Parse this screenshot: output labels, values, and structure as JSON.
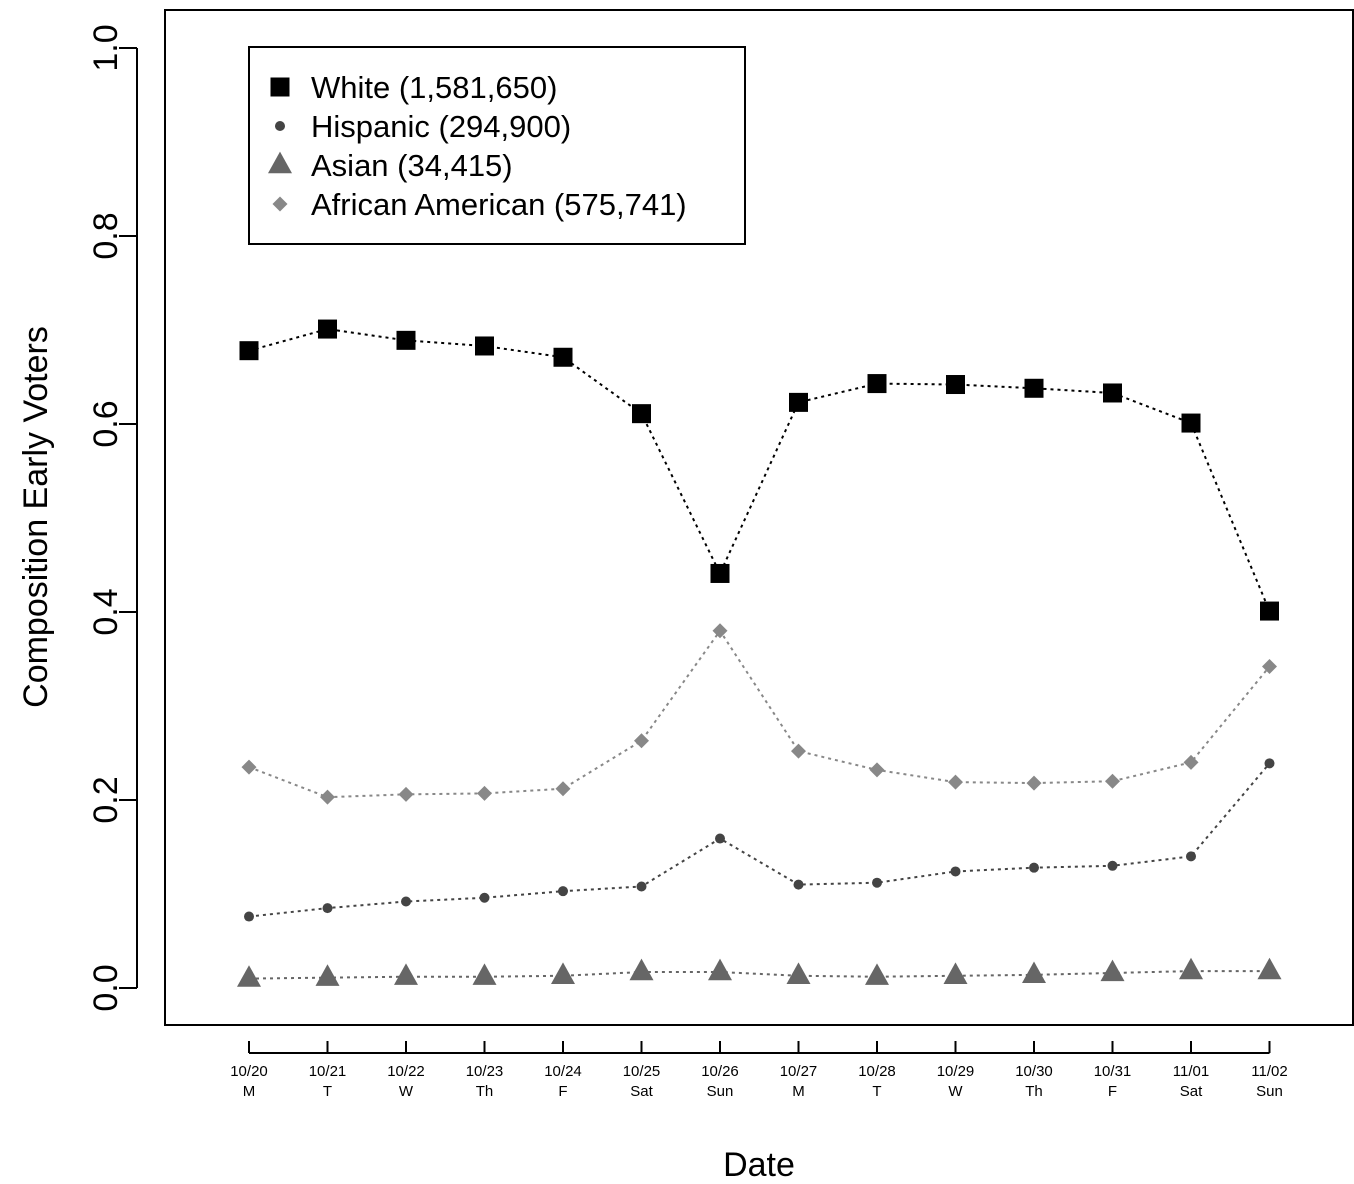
{
  "chart_data": {
    "type": "line",
    "xlabel": "Date",
    "ylabel": "Composition Early Voters",
    "ylim": [
      0,
      1
    ],
    "yticks": [
      "0.0",
      "0.2",
      "0.4",
      "0.6",
      "0.8",
      "1.0"
    ],
    "ytick_values": [
      0,
      0.2,
      0.4,
      0.6,
      0.8,
      1.0
    ],
    "grid": false,
    "legend_position": "top-left",
    "categories": [
      {
        "date": "10/20",
        "day": "M"
      },
      {
        "date": "10/21",
        "day": "T"
      },
      {
        "date": "10/22",
        "day": "W"
      },
      {
        "date": "10/23",
        "day": "Th"
      },
      {
        "date": "10/24",
        "day": "F"
      },
      {
        "date": "10/25",
        "day": "Sat"
      },
      {
        "date": "10/26",
        "day": "Sun"
      },
      {
        "date": "10/27",
        "day": "M"
      },
      {
        "date": "10/28",
        "day": "T"
      },
      {
        "date": "10/29",
        "day": "W"
      },
      {
        "date": "10/30",
        "day": "Th"
      },
      {
        "date": "10/31",
        "day": "F"
      },
      {
        "date": "11/01",
        "day": "Sat"
      },
      {
        "date": "11/02",
        "day": "Sun"
      }
    ],
    "series": [
      {
        "name": "White (1,581,650)",
        "marker": "square",
        "color": "#000000",
        "values": [
          0.678,
          0.701,
          0.689,
          0.683,
          0.671,
          0.611,
          0.441,
          0.623,
          0.643,
          0.642,
          0.638,
          0.633,
          0.601,
          0.401
        ]
      },
      {
        "name": "Hispanic (294,900)",
        "marker": "circle",
        "color": "#444444",
        "values": [
          0.076,
          0.085,
          0.092,
          0.096,
          0.103,
          0.108,
          0.159,
          0.11,
          0.112,
          0.124,
          0.128,
          0.13,
          0.14,
          0.239
        ]
      },
      {
        "name": "Asian (34,415)",
        "marker": "triangle",
        "color": "#666666",
        "values": [
          0.01,
          0.011,
          0.012,
          0.012,
          0.013,
          0.017,
          0.017,
          0.013,
          0.012,
          0.013,
          0.014,
          0.016,
          0.018,
          0.018
        ]
      },
      {
        "name": "African American (575,741)",
        "marker": "diamond",
        "color": "#888888",
        "values": [
          0.235,
          0.203,
          0.206,
          0.207,
          0.212,
          0.263,
          0.38,
          0.252,
          0.232,
          0.219,
          0.218,
          0.22,
          0.24,
          0.342
        ]
      }
    ]
  }
}
